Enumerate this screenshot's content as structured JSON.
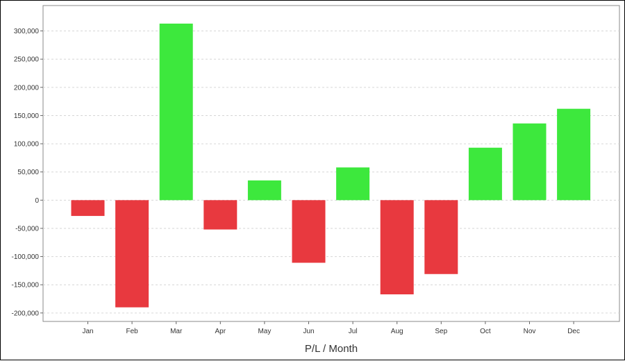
{
  "chart_data": {
    "type": "bar",
    "title": "",
    "xlabel": "P/L / Month",
    "ylabel": "",
    "categories": [
      "Jan",
      "Feb",
      "Mar",
      "Apr",
      "May",
      "Jun",
      "Jul",
      "Aug",
      "Sep",
      "Oct",
      "Nov",
      "Dec"
    ],
    "values": [
      -28000,
      -190000,
      313000,
      -52000,
      35000,
      -111000,
      58000,
      -167000,
      -131000,
      93000,
      136000,
      162000
    ],
    "ylim": [
      -215000,
      345000
    ],
    "yticks": [
      -200000,
      -150000,
      -100000,
      -50000,
      0,
      50000,
      100000,
      150000,
      200000,
      250000,
      300000
    ],
    "ytick_labels": [
      "-200,000",
      "-150,000",
      "-100,000",
      "-50,000",
      "0",
      "50,000",
      "100,000",
      "150,000",
      "200,000",
      "250,000",
      "300,000"
    ],
    "grid": true,
    "legend": "none",
    "colors": {
      "positive": "#3de83d",
      "negative": "#e8393f",
      "grid": "#d6d6d6",
      "axis": "#666666"
    }
  }
}
